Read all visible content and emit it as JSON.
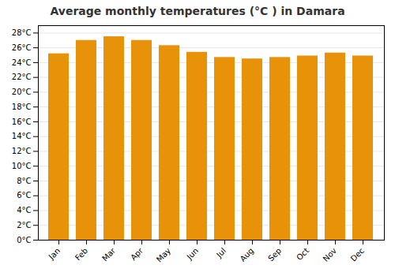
{
  "chart_data": {
    "type": "bar",
    "title": "Average monthly temperatures (°C ) in Damara",
    "categories": [
      "Jan",
      "Feb",
      "Mar",
      "Apr",
      "May",
      "Jun",
      "Jul",
      "Aug",
      "Sep",
      "Oct",
      "Nov",
      "Dec"
    ],
    "values": [
      25.2,
      27.0,
      27.5,
      27.0,
      26.3,
      25.4,
      24.7,
      24.5,
      24.7,
      24.9,
      25.3,
      24.9
    ],
    "color": "#E8920A",
    "ylim": [
      0,
      29
    ],
    "yticks": [
      {
        "value": 0,
        "label": "0°C"
      },
      {
        "value": 2,
        "label": "2°C"
      },
      {
        "value": 4,
        "label": "4°C"
      },
      {
        "value": 6,
        "label": "6°C"
      },
      {
        "value": 8,
        "label": "8°C"
      },
      {
        "value": 10,
        "label": "10°C"
      },
      {
        "value": 12,
        "label": "12°C"
      },
      {
        "value": 14,
        "label": "14°C"
      },
      {
        "value": 16,
        "label": "16°C"
      },
      {
        "value": 18,
        "label": "18°C"
      },
      {
        "value": 20,
        "label": "20°C"
      },
      {
        "value": 22,
        "label": "22°C"
      },
      {
        "value": 24,
        "label": "24°C"
      },
      {
        "value": 26,
        "label": "26°C"
      },
      {
        "value": 28,
        "label": "28°C"
      }
    ],
    "grid": true
  }
}
